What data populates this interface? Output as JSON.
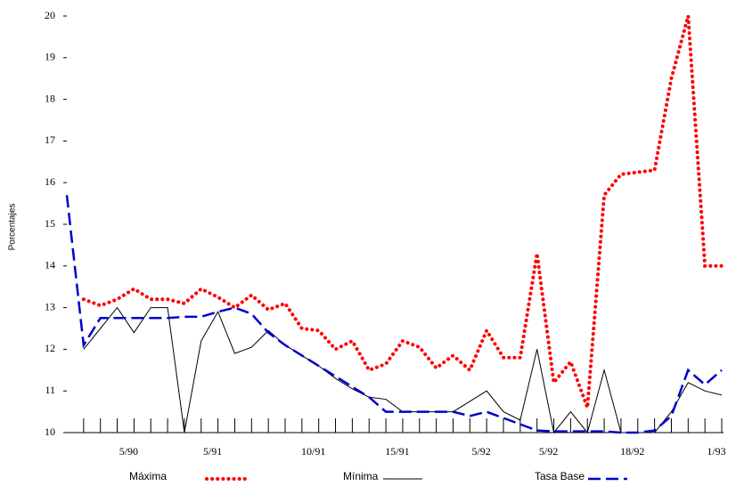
{
  "chart_data": {
    "type": "line",
    "y_label": "Porcentajes",
    "categories": [
      null,
      null,
      null,
      null,
      "5/90",
      null,
      null,
      null,
      null,
      "5/91",
      null,
      null,
      null,
      null,
      null,
      "10/91",
      null,
      null,
      null,
      null,
      "15/91",
      null,
      null,
      null,
      null,
      "5/92",
      null,
      null,
      null,
      "5/92",
      null,
      null,
      null,
      null,
      "18/92",
      null,
      null,
      null,
      null,
      "1/93"
    ],
    "ylim": [
      10,
      20
    ],
    "yticks": [
      10,
      11,
      12,
      13,
      14,
      15,
      16,
      17,
      18,
      19,
      20
    ],
    "series": [
      {
        "name": "Máxima",
        "color": "#ff0000",
        "style": "dotted",
        "values": [
          null,
          13.2,
          13.05,
          13.2,
          13.45,
          13.2,
          13.2,
          13.1,
          13.45,
          13.25,
          13.0,
          13.3,
          12.95,
          13.1,
          12.5,
          12.45,
          12.0,
          12.2,
          11.5,
          11.65,
          12.2,
          12.05,
          11.55,
          11.85,
          11.5,
          12.45,
          11.8,
          11.8,
          14.3,
          11.2,
          11.7,
          10.6,
          15.7,
          16.2,
          16.25,
          16.3,
          18.5,
          20,
          14.0,
          14.0
        ]
      },
      {
        "name": "Mínima",
        "color": "#000000",
        "style": "solid",
        "values": [
          null,
          12.0,
          12.5,
          13.0,
          12.4,
          13.0,
          13.0,
          10.0,
          12.2,
          12.9,
          11.9,
          12.05,
          12.45,
          12.1,
          11.85,
          11.6,
          11.3,
          11.05,
          10.85,
          10.8,
          10.5,
          10.5,
          10.5,
          10.5,
          10.75,
          11.0,
          10.5,
          10.3,
          12.0,
          10.0,
          10.5,
          10.0,
          11.5,
          10.0,
          10.0,
          10.0,
          10.5,
          11.2,
          11.0,
          10.9
        ]
      },
      {
        "name": "Tasa Base",
        "color": "#0000cc",
        "style": "dashed",
        "values": [
          15.7,
          12.1,
          12.75,
          12.75,
          12.75,
          12.75,
          12.75,
          12.78,
          12.78,
          12.9,
          13.0,
          12.85,
          12.4,
          12.1,
          11.85,
          11.6,
          11.35,
          11.1,
          10.85,
          10.5,
          10.5,
          10.5,
          10.5,
          10.5,
          10.4,
          10.5,
          10.35,
          10.2,
          10.05,
          10.03,
          10.03,
          10.03,
          10.03,
          10.0,
          10.0,
          10.05,
          10.4,
          11.5,
          11.15,
          11.5
        ]
      }
    ]
  }
}
